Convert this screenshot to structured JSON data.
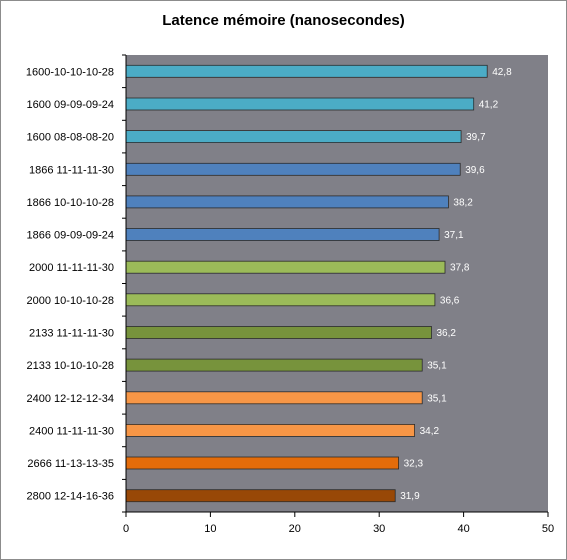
{
  "chart_data": {
    "type": "bar",
    "orientation": "horizontal",
    "title": "Latence mémoire (nanosecondes)",
    "xlabel": "",
    "ylabel": "",
    "xlim": [
      0,
      50
    ],
    "ticks": [
      0,
      10,
      20,
      30,
      40,
      50
    ],
    "grid": false,
    "legend": "none",
    "plot_background": "#808088",
    "categories": [
      "1600-10-10-10-28",
      "1600 09-09-09-24",
      "1600 08-08-08-20",
      "1866 11-11-11-30",
      "1866 10-10-10-28",
      "1866 09-09-09-24",
      "2000 11-11-11-30",
      "2000 10-10-10-28",
      "2133 11-11-11-30",
      "2133 10-10-10-28",
      "2400 12-12-12-34",
      "2400 11-11-11-30",
      "2666 11-13-13-35",
      "2800 12-14-16-36"
    ],
    "values": [
      42.8,
      41.2,
      39.7,
      39.6,
      38.2,
      37.1,
      37.8,
      36.6,
      36.2,
      35.1,
      35.1,
      34.2,
      32.3,
      31.9
    ],
    "value_labels": [
      "42,8",
      "41,2",
      "39,7",
      "39,6",
      "38,2",
      "37,1",
      "37,8",
      "36,6",
      "36,2",
      "35,1",
      "35,1",
      "34,2",
      "32,3",
      "31,9"
    ],
    "colors": [
      "#4bacc6",
      "#4bacc6",
      "#4bacc6",
      "#4f81bd",
      "#4f81bd",
      "#4f81bd",
      "#9bbb59",
      "#9bbb59",
      "#77933c",
      "#77933c",
      "#f79646",
      "#f79646",
      "#e46c0a",
      "#984807"
    ]
  }
}
